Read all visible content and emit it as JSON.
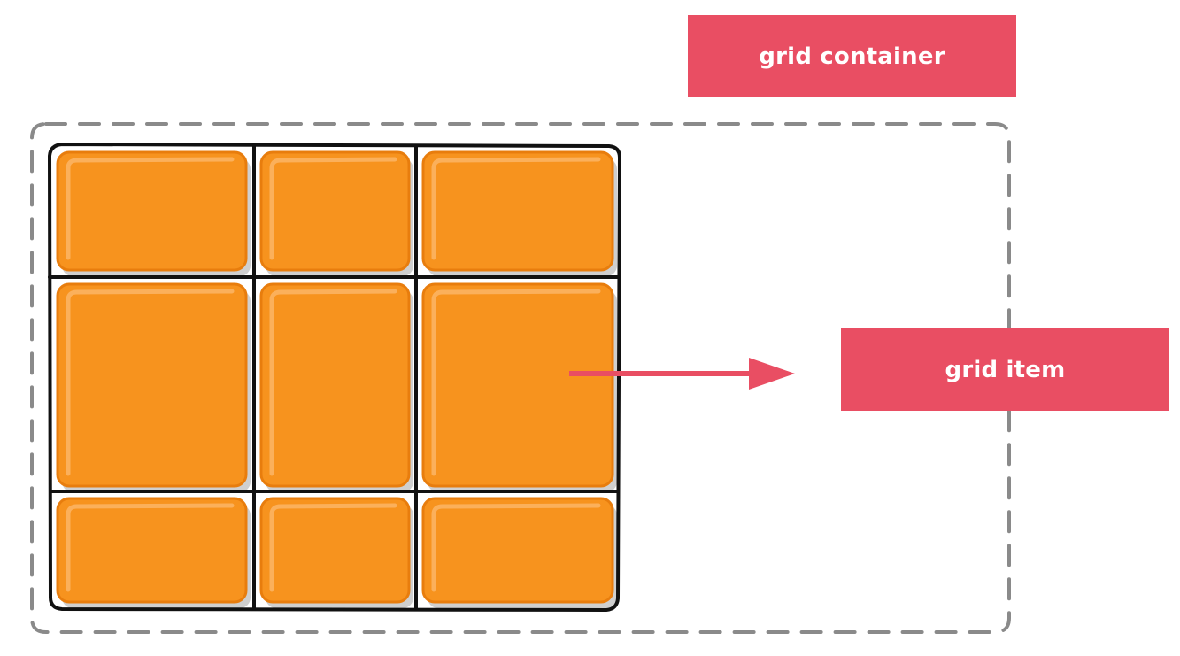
{
  "labels": {
    "container": "grid container",
    "item": "grid item"
  },
  "colors": {
    "label_bg": "#e94e63",
    "arrow": "#e94e63",
    "cell_fill": "#f7931e",
    "cell_stroke": "#e87d0d",
    "cell_highlight": "#fbb566",
    "cell_shadow": "#cfcfcf",
    "grid_line": "#111111",
    "container_border": "#8a8a8a"
  },
  "grid": {
    "rows": 3,
    "columns": 3
  }
}
